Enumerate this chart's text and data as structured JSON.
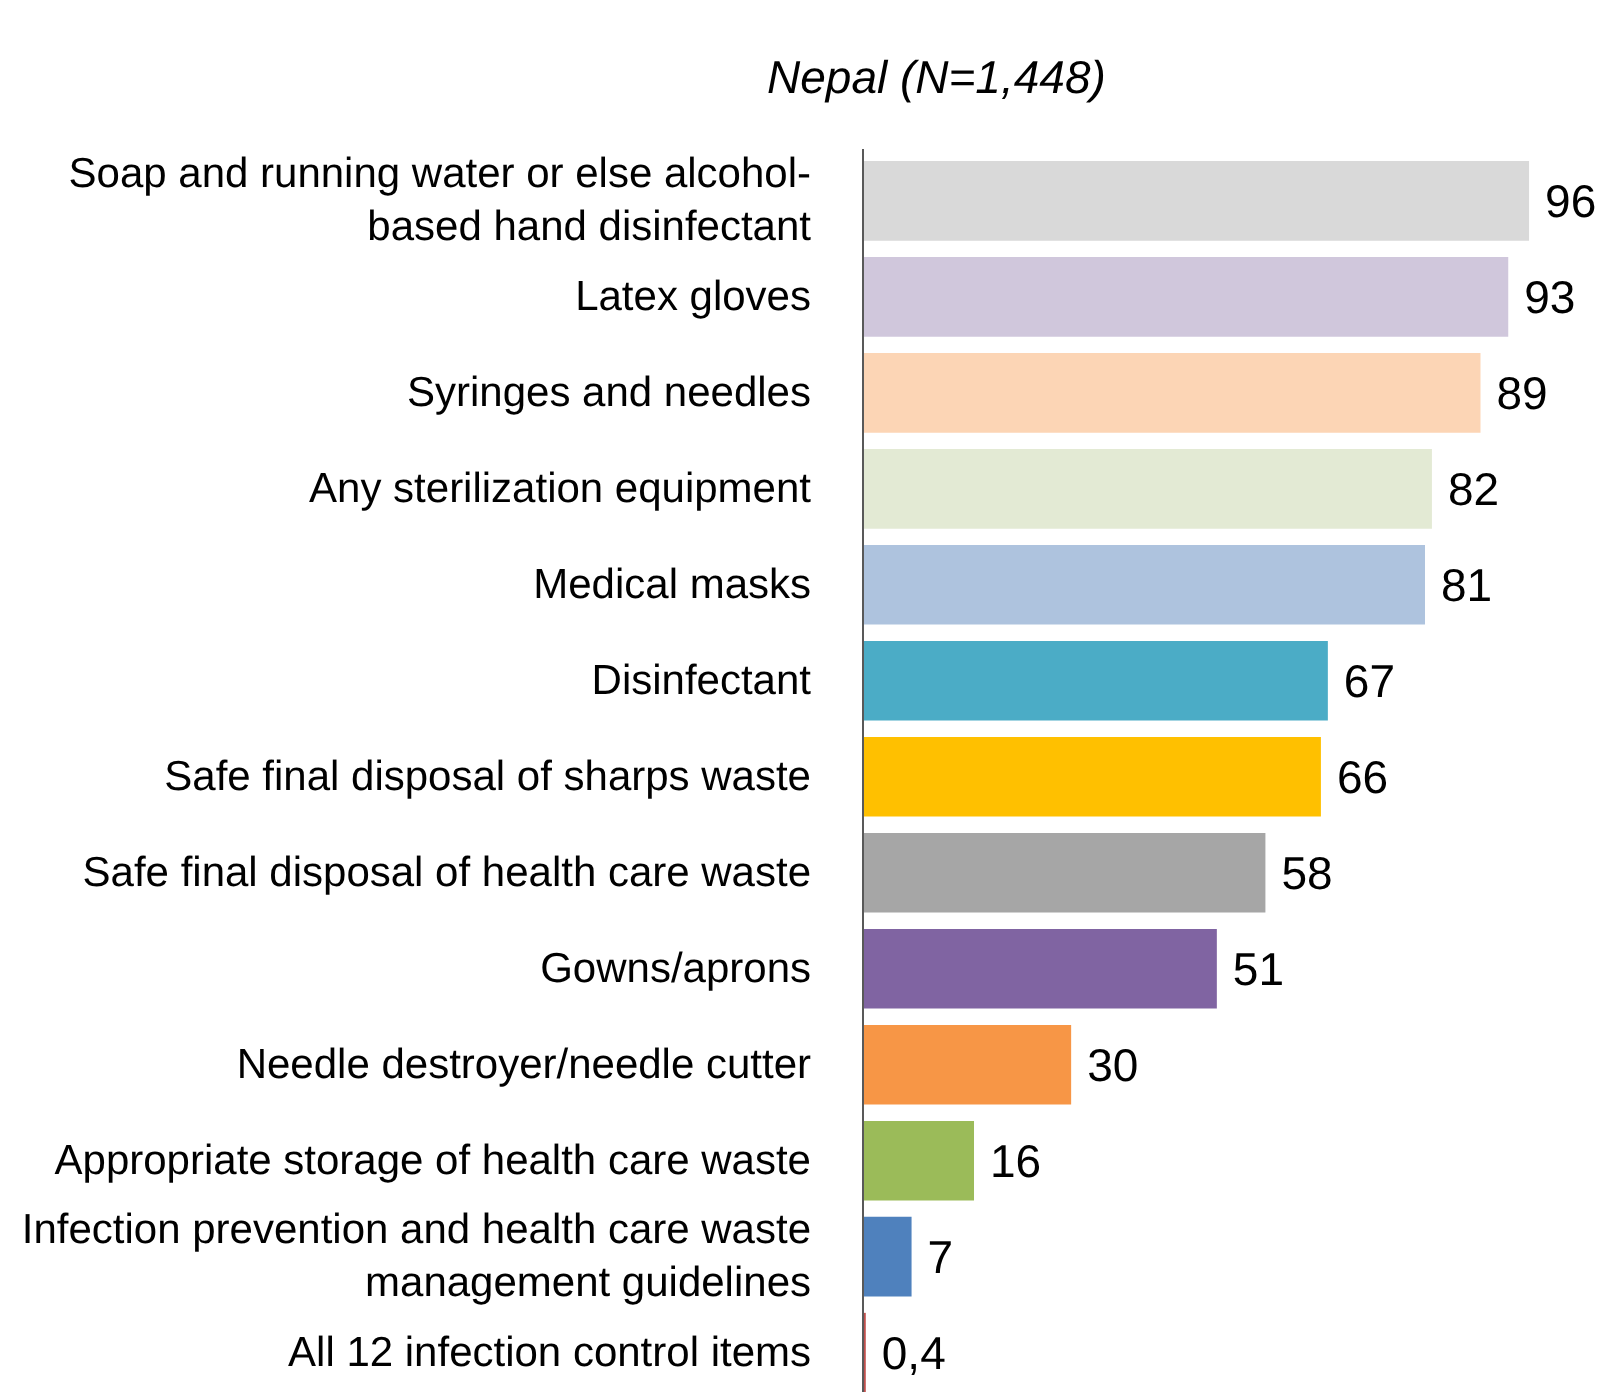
{
  "chart_data": {
    "type": "bar",
    "orientation": "horizontal",
    "title": "Nepal (N=1,448)",
    "categories": [
      "Soap and running water or else alcohol-based hand disinfectant",
      "Latex gloves",
      "Syringes and needles",
      "Any sterilization equipment",
      "Medical masks",
      "Disinfectant",
      "Safe final disposal of sharps waste",
      "Safe final disposal of health care waste",
      "Gowns/aprons",
      "Needle destroyer/needle cutter",
      "Appropriate storage of health care waste",
      "Infection prevention and health care waste management guidelines",
      "All 12 infection control items"
    ],
    "values": [
      96,
      93,
      89,
      82,
      81,
      67,
      66,
      58,
      51,
      30,
      16,
      7,
      0.4
    ],
    "colors": [
      "#d9d9d9",
      "#d0c7dc",
      "#fcd5b5",
      "#e3ead4",
      "#aec3de",
      "#4bacc6",
      "#ffc000",
      "#a6a6a6",
      "#8064a2",
      "#f79646",
      "#9bbb59",
      "#4f81bd",
      "#c0504d"
    ],
    "value_labels": [
      "96",
      "93",
      "89",
      "82",
      "81",
      "67",
      "66",
      "58",
      "51",
      "30",
      "16",
      "7",
      "0,4"
    ],
    "grid": false
  }
}
